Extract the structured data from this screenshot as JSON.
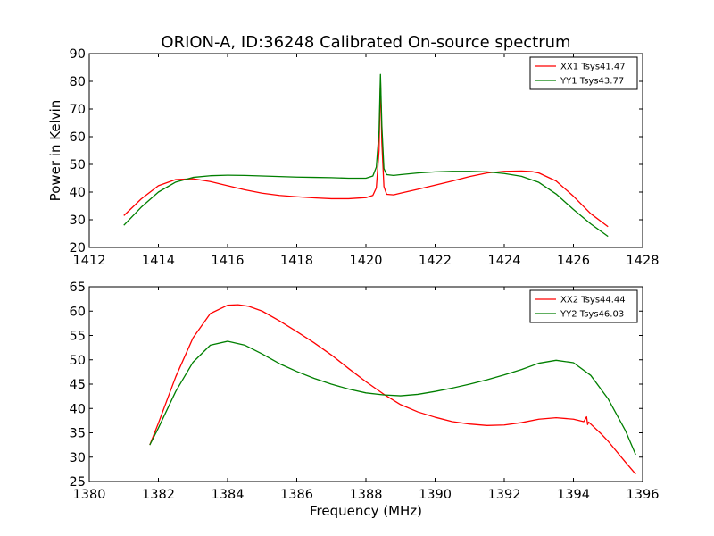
{
  "title": "ORION-A, ID:36248 Calibrated On-source spectrum",
  "chart_data": [
    {
      "type": "line",
      "ylabel": "Power in Kelvin",
      "xlabel": "",
      "xlim": [
        1412,
        1428
      ],
      "ylim": [
        20,
        90
      ],
      "xticks": [
        1412,
        1414,
        1416,
        1418,
        1420,
        1422,
        1424,
        1426,
        1428
      ],
      "yticks": [
        20,
        30,
        40,
        50,
        60,
        70,
        80,
        90
      ],
      "legend_position": "top-right",
      "series": [
        {
          "name": "XX1 Tsys41.47",
          "color": "#ff0000",
          "x": [
            1413.0,
            1413.5,
            1414.0,
            1414.5,
            1415.0,
            1415.5,
            1416.0,
            1416.5,
            1417.0,
            1417.5,
            1418.0,
            1418.5,
            1419.0,
            1419.5,
            1420.0,
            1420.2,
            1420.3,
            1420.38,
            1420.42,
            1420.46,
            1420.52,
            1420.6,
            1420.8,
            1421.0,
            1421.5,
            1422.0,
            1422.5,
            1423.0,
            1423.5,
            1424.0,
            1424.5,
            1424.8,
            1425.0,
            1425.5,
            1426.0,
            1426.5,
            1427.0
          ],
          "y": [
            31.5,
            37.5,
            42.3,
            44.5,
            44.8,
            43.8,
            42.3,
            40.8,
            39.6,
            38.8,
            38.3,
            37.9,
            37.6,
            37.6,
            38.0,
            38.8,
            41.5,
            55.0,
            81.0,
            58.0,
            42.0,
            39.2,
            39.0,
            39.6,
            41.0,
            42.5,
            44.0,
            45.6,
            46.9,
            47.5,
            47.6,
            47.4,
            46.9,
            44.0,
            38.5,
            32.2,
            27.5
          ]
        },
        {
          "name": "YY1 Tsys43.77",
          "color": "#007f00",
          "x": [
            1413.0,
            1413.5,
            1414.0,
            1414.5,
            1415.0,
            1415.5,
            1416.0,
            1416.5,
            1417.0,
            1417.5,
            1418.0,
            1418.5,
            1419.0,
            1419.5,
            1420.0,
            1420.2,
            1420.3,
            1420.38,
            1420.42,
            1420.46,
            1420.52,
            1420.6,
            1420.8,
            1421.0,
            1421.5,
            1422.0,
            1422.5,
            1423.0,
            1423.5,
            1424.0,
            1424.5,
            1425.0,
            1425.5,
            1426.0,
            1426.5,
            1427.0
          ],
          "y": [
            28.0,
            34.5,
            40.0,
            43.6,
            45.3,
            45.9,
            46.1,
            46.0,
            45.8,
            45.6,
            45.4,
            45.3,
            45.2,
            45.0,
            45.0,
            45.8,
            49.0,
            62.0,
            82.5,
            64.0,
            48.5,
            46.3,
            46.0,
            46.3,
            46.9,
            47.3,
            47.5,
            47.5,
            47.3,
            46.7,
            45.7,
            43.5,
            39.3,
            33.7,
            28.5,
            24.0
          ]
        }
      ]
    },
    {
      "type": "line",
      "ylabel": "",
      "xlabel": "Frequency (MHz)",
      "xlim": [
        1380,
        1396
      ],
      "ylim": [
        25,
        65
      ],
      "xticks": [
        1380,
        1382,
        1384,
        1386,
        1388,
        1390,
        1392,
        1394,
        1396
      ],
      "yticks": [
        25,
        30,
        35,
        40,
        45,
        50,
        55,
        60,
        65
      ],
      "legend_position": "top-right",
      "series": [
        {
          "name": "XX2 Tsys44.44",
          "color": "#ff0000",
          "x": [
            1381.75,
            1382.0,
            1382.5,
            1383.0,
            1383.5,
            1384.0,
            1384.3,
            1384.6,
            1385.0,
            1385.5,
            1386.0,
            1386.5,
            1387.0,
            1387.5,
            1388.0,
            1388.5,
            1389.0,
            1389.5,
            1390.0,
            1390.5,
            1391.0,
            1391.5,
            1392.0,
            1392.5,
            1393.0,
            1393.5,
            1394.0,
            1394.3,
            1394.38,
            1394.41,
            1394.44,
            1394.5,
            1394.8,
            1395.0,
            1395.5,
            1395.8
          ],
          "y": [
            32.5,
            37.0,
            46.5,
            54.5,
            59.5,
            61.2,
            61.3,
            61.0,
            60.0,
            58.0,
            55.8,
            53.5,
            51.0,
            48.2,
            45.5,
            43.0,
            40.8,
            39.3,
            38.2,
            37.3,
            36.8,
            36.5,
            36.6,
            37.1,
            37.8,
            38.1,
            37.8,
            37.3,
            38.3,
            36.7,
            37.2,
            36.8,
            34.8,
            33.3,
            29.0,
            26.5
          ]
        },
        {
          "name": "YY2 Tsys46.03",
          "color": "#007f00",
          "x": [
            1381.75,
            1382.0,
            1382.5,
            1383.0,
            1383.5,
            1384.0,
            1384.5,
            1385.0,
            1385.5,
            1386.0,
            1386.5,
            1387.0,
            1387.5,
            1388.0,
            1388.5,
            1389.0,
            1389.5,
            1390.0,
            1390.5,
            1391.0,
            1391.5,
            1392.0,
            1392.5,
            1393.0,
            1393.5,
            1394.0,
            1394.5,
            1395.0,
            1395.5,
            1395.8
          ],
          "y": [
            32.5,
            36.0,
            43.5,
            49.5,
            53.0,
            53.8,
            53.0,
            51.2,
            49.2,
            47.6,
            46.2,
            45.0,
            44.0,
            43.2,
            42.8,
            42.6,
            42.9,
            43.5,
            44.2,
            45.0,
            45.9,
            46.9,
            48.0,
            49.3,
            49.9,
            49.4,
            46.8,
            42.0,
            35.5,
            30.5
          ]
        }
      ]
    }
  ]
}
